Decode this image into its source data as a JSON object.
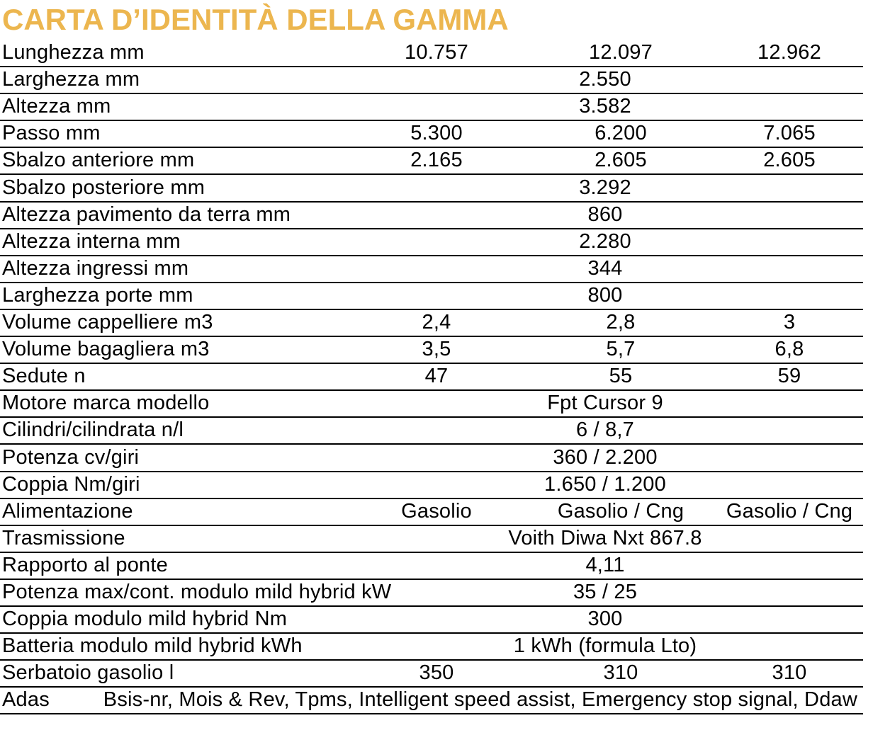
{
  "title": "CARTA D’IDENTITÀ DELLA GAMMA",
  "colors": {
    "title": "#ECB64F",
    "text": "#000000",
    "rule_lines": "#000000"
  },
  "table": {
    "rows": [
      {
        "label": "Lunghezza mm",
        "values": [
          "10.757",
          "12.097",
          "12.962"
        ]
      },
      {
        "label": "Larghezza mm",
        "span": "2.550"
      },
      {
        "label": "Altezza mm",
        "span": "3.582"
      },
      {
        "label": "Passo mm",
        "values": [
          "5.300",
          "6.200",
          "7.065"
        ]
      },
      {
        "label": "Sbalzo anteriore mm",
        "values": [
          "2.165",
          "2.605",
          "2.605"
        ]
      },
      {
        "label": "Sbalzo posteriore mm",
        "span": "3.292"
      },
      {
        "label": "Altezza pavimento da terra mm",
        "span": "860"
      },
      {
        "label": "Altezza interna mm",
        "span": "2.280"
      },
      {
        "label": "Altezza ingressi mm",
        "span": "344"
      },
      {
        "label": "Larghezza porte mm",
        "span": "800"
      },
      {
        "label": "Volume cappelliere m3",
        "values": [
          "2,4",
          "2,8",
          "3"
        ]
      },
      {
        "label": "Volume bagagliera m3",
        "values": [
          "3,5",
          "5,7",
          "6,8"
        ]
      },
      {
        "label": "Sedute n",
        "values": [
          "47",
          "55",
          "59"
        ]
      },
      {
        "label": "Motore marca modello",
        "span": "Fpt Cursor 9"
      },
      {
        "label": "Cilindri/cilindrata n/l",
        "span": "6 / 8,7"
      },
      {
        "label": "Potenza cv/giri",
        "span": "360 / 2.200"
      },
      {
        "label": "Coppia Nm/giri",
        "span": "1.650 / 1.200"
      },
      {
        "label": "Alimentazione",
        "values": [
          "Gasolio",
          "Gasolio / Cng",
          "Gasolio / Cng"
        ]
      },
      {
        "label": "Trasmissione",
        "span": "Voith Diwa Nxt 867.8"
      },
      {
        "label": "Rapporto al ponte",
        "span": "4,11"
      },
      {
        "label": "Potenza max/cont. modulo mild hybrid kW",
        "span": "35 / 25"
      },
      {
        "label": "Coppia modulo mild hybrid Nm",
        "span": "300"
      },
      {
        "label": "Batteria modulo mild hybrid kWh",
        "span": "1 kWh (formula Lto)"
      },
      {
        "label": "Serbatoio gasolio l",
        "values": [
          "350",
          "310",
          "310"
        ]
      },
      {
        "label": "Adas",
        "wide": "Bsis-nr, Mois & Rev, Tpms, Intelligent speed assist, Emergency stop signal, Ddaw"
      }
    ]
  }
}
